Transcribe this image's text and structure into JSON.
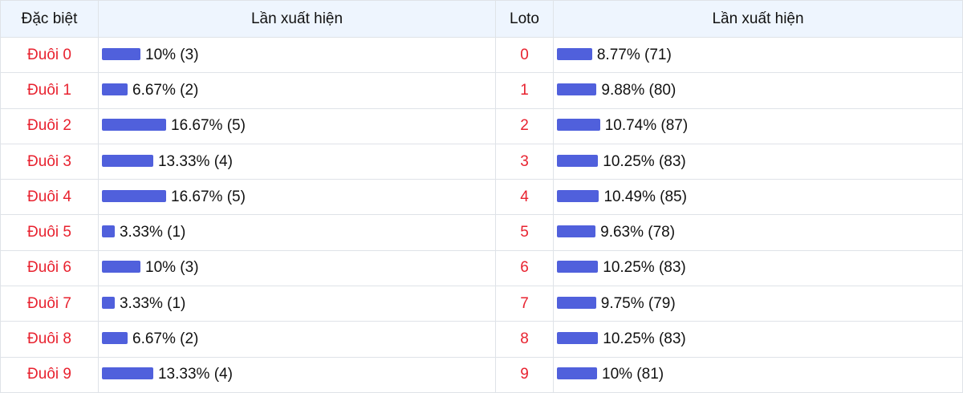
{
  "headers": {
    "special": "Đặc biệt",
    "appear1": "Lần xuất hiện",
    "loto": "Loto",
    "appear2": "Lần xuất hiện"
  },
  "colors": {
    "bar": "#5060dc",
    "label": "#e8222f",
    "header_bg": "#eef5fe"
  },
  "rows": [
    {
      "special": "Đuôi 0",
      "special_pct": 10,
      "special_text": "10% (3)",
      "loto": "0",
      "loto_pct": 8.77,
      "loto_text": "8.77% (71)"
    },
    {
      "special": "Đuôi 1",
      "special_pct": 6.67,
      "special_text": "6.67% (2)",
      "loto": "1",
      "loto_pct": 9.88,
      "loto_text": "9.88% (80)"
    },
    {
      "special": "Đuôi 2",
      "special_pct": 16.67,
      "special_text": "16.67% (5)",
      "loto": "2",
      "loto_pct": 10.74,
      "loto_text": "10.74% (87)"
    },
    {
      "special": "Đuôi 3",
      "special_pct": 13.33,
      "special_text": "13.33% (4)",
      "loto": "3",
      "loto_pct": 10.25,
      "loto_text": "10.25% (83)"
    },
    {
      "special": "Đuôi 4",
      "special_pct": 16.67,
      "special_text": "16.67% (5)",
      "loto": "4",
      "loto_pct": 10.49,
      "loto_text": "10.49% (85)"
    },
    {
      "special": "Đuôi 5",
      "special_pct": 3.33,
      "special_text": "3.33% (1)",
      "loto": "5",
      "loto_pct": 9.63,
      "loto_text": "9.63% (78)"
    },
    {
      "special": "Đuôi 6",
      "special_pct": 10,
      "special_text": "10% (3)",
      "loto": "6",
      "loto_pct": 10.25,
      "loto_text": "10.25% (83)"
    },
    {
      "special": "Đuôi 7",
      "special_pct": 3.33,
      "special_text": "3.33% (1)",
      "loto": "7",
      "loto_pct": 9.75,
      "loto_text": "9.75% (79)"
    },
    {
      "special": "Đuôi 8",
      "special_pct": 6.67,
      "special_text": "6.67% (2)",
      "loto": "8",
      "loto_pct": 10.25,
      "loto_text": "10.25% (83)"
    },
    {
      "special": "Đuôi 9",
      "special_pct": 13.33,
      "special_text": "13.33% (4)",
      "loto": "9",
      "loto_pct": 10,
      "loto_text": "10% (81)"
    }
  ]
}
